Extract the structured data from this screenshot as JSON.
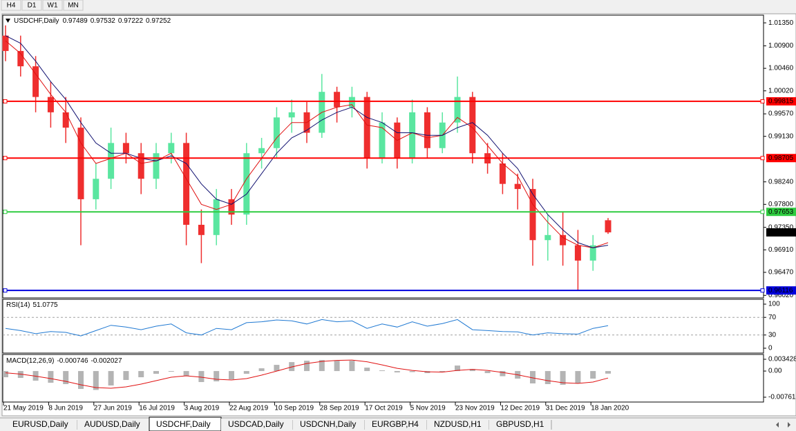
{
  "toolbar": [
    "H4",
    "D1",
    "W1",
    "MN"
  ],
  "tabs": [
    "EURUSD,Daily",
    "AUDUSD,Daily",
    "USDCHF,Daily",
    "USDCAD,Daily",
    "USDCNH,Daily",
    "EURGBP,H4",
    "NZDUSD,H1",
    "GBPUSD,H1"
  ],
  "active_tab": 2,
  "chart_data": [
    {
      "type": "candlestick",
      "symbol": "USDCHF,Daily",
      "categories": [
        "21 May 2019",
        null,
        null,
        "8 Jun 2019",
        null,
        null,
        "27 Jun 2019",
        null,
        null,
        "16 Jul 2019",
        null,
        null,
        "3 Aug 2019",
        null,
        null,
        "22 Aug 2019",
        null,
        null,
        "10 Sep 2019",
        null,
        null,
        "28 Sep 2019",
        null,
        null,
        "17 Oct 2019",
        null,
        null,
        "5 Nov 2019",
        null,
        null,
        "23 Nov 2019",
        null,
        null,
        "12 Dec 2019",
        null,
        null,
        "31 Dec 2019",
        null,
        null,
        "18 Jan 2020",
        null
      ],
      "open": [
        1.011,
        1.008,
        1.005,
        0.999,
        0.996,
        0.993,
        0.979,
        0.983,
        0.99,
        0.988,
        0.983,
        0.988,
        0.99,
        0.974,
        0.972,
        0.979,
        0.976,
        0.988,
        0.989,
        0.995,
        0.996,
        0.992,
        1.0,
        0.997,
        0.999,
        0.987,
        0.994,
        0.987,
        0.996,
        0.989,
        0.994,
        0.999,
        0.988,
        0.986,
        0.982,
        0.981,
        0.971,
        0.972,
        0.97,
        0.967,
        0.97489
      ],
      "high": [
        1.013,
        1.011,
        1.007,
        1.002,
        0.999,
        0.995,
        0.986,
        0.993,
        0.992,
        0.99,
        0.99,
        0.992,
        0.992,
        0.977,
        0.981,
        0.981,
        0.99,
        0.991,
        0.997,
        0.9985,
        0.998,
        1.0035,
        1.001,
        1.001,
        1.0,
        0.996,
        0.995,
        0.9985,
        0.997,
        0.996,
        1.003,
        1.0,
        0.99,
        0.988,
        0.984,
        0.983,
        0.976,
        0.9765,
        0.973,
        0.972,
        0.97532
      ],
      "low": [
        1.006,
        1.003,
        0.996,
        0.993,
        0.99,
        0.97,
        0.977,
        0.981,
        0.986,
        0.98,
        0.981,
        0.986,
        0.97,
        0.9665,
        0.97,
        0.974,
        0.974,
        0.985,
        0.987,
        0.992,
        0.99,
        0.991,
        0.994,
        0.995,
        0.985,
        0.986,
        0.985,
        0.986,
        0.987,
        0.988,
        0.992,
        0.986,
        0.984,
        0.98,
        0.977,
        0.966,
        0.967,
        0.966,
        0.9612,
        0.965,
        0.97222
      ],
      "close": [
        1.008,
        1.005,
        0.999,
        0.996,
        0.993,
        0.979,
        0.983,
        0.99,
        0.988,
        0.983,
        0.988,
        0.99,
        0.974,
        0.972,
        0.979,
        0.976,
        0.988,
        0.989,
        0.995,
        0.996,
        0.992,
        1.0,
        0.997,
        0.999,
        0.987,
        0.994,
        0.987,
        0.996,
        0.989,
        0.994,
        0.999,
        0.988,
        0.986,
        0.982,
        0.981,
        0.971,
        0.972,
        0.97,
        0.967,
        0.97,
        0.97252
      ],
      "up_color": "#5ae6a0",
      "down_color": "#ef2e2e",
      "series": [
        {
          "color": "#e01010",
          "values": [
            1.01,
            1.0075,
            1.0035,
            0.9995,
            0.996,
            0.99,
            0.986,
            0.987,
            0.988,
            0.986,
            0.9865,
            0.988,
            0.983,
            0.978,
            0.977,
            0.978,
            0.983,
            0.987,
            0.991,
            0.994,
            0.994,
            0.996,
            0.997,
            0.9975,
            0.9935,
            0.993,
            0.9905,
            0.992,
            0.991,
            0.9915,
            0.995,
            0.993,
            0.9895,
            0.986,
            0.9835,
            0.978,
            0.9745,
            0.9715,
            0.97,
            0.9695,
            0.9705
          ]
        },
        {
          "color": "#101070",
          "values": [
            1.011,
            1.0095,
            1.006,
            1.002,
            0.9985,
            0.994,
            0.99,
            0.988,
            0.988,
            0.987,
            0.9865,
            0.9875,
            0.986,
            0.982,
            0.979,
            0.978,
            0.98,
            0.984,
            0.988,
            0.991,
            0.9925,
            0.9945,
            0.996,
            0.997,
            0.995,
            0.994,
            0.992,
            0.992,
            0.9915,
            0.9915,
            0.993,
            0.994,
            0.9915,
            0.988,
            0.985,
            0.98,
            0.976,
            0.973,
            0.9705,
            0.9695,
            0.97
          ]
        }
      ],
      "levels": [
        {
          "value": 0.99815,
          "color": "#ff0000"
        },
        {
          "value": 0.98705,
          "color": "#ff0000"
        },
        {
          "value": 0.97653,
          "color": "#2ecc40"
        },
        {
          "value": 0.96116,
          "color": "#0000dd"
        }
      ],
      "ylim": [
        0.9597,
        1.015
      ],
      "yticks": [
        {
          "value": 1.0135,
          "label": "1.01350"
        },
        {
          "value": 1.009,
          "label": "1.00900"
        },
        {
          "value": 1.0046,
          "label": "1.00460"
        },
        {
          "value": 1.0002,
          "label": "1.00020"
        },
        {
          "value": 0.9957,
          "label": "0.99570"
        },
        {
          "value": 0.9913,
          "label": "0.99130"
        },
        {
          "value": 0.9824,
          "label": "0.98240"
        },
        {
          "value": 0.978,
          "label": "0.97800"
        },
        {
          "value": 0.9735,
          "label": "0.97350"
        },
        {
          "value": 0.9691,
          "label": "0.96910"
        },
        {
          "value": 0.9647,
          "label": "0.96470"
        },
        {
          "value": 0.9602,
          "label": "0.96020"
        }
      ]
    },
    {
      "type": "line",
      "title": "RSI(14)",
      "series": [
        {
          "color": "#1e78d2",
          "values": [
            45,
            40,
            33,
            38,
            36,
            28,
            40,
            52,
            48,
            42,
            50,
            55,
            35,
            30,
            45,
            42,
            58,
            60,
            64,
            62,
            55,
            65,
            60,
            62,
            45,
            55,
            48,
            60,
            50,
            56,
            65,
            42,
            40,
            38,
            37,
            30,
            35,
            33,
            32,
            45,
            51.0775
          ]
        }
      ],
      "levels": [
        70,
        30
      ],
      "ylim": [
        -11,
        111
      ],
      "yticks": [
        100,
        70,
        30,
        0
      ]
    },
    {
      "type": "macd",
      "title": "MACD(12,26,9)",
      "histogram": {
        "color": "#b4b4b4",
        "values": [
          -0.0018,
          -0.002,
          -0.0028,
          -0.0034,
          -0.0038,
          -0.0052,
          -0.0055,
          -0.0042,
          -0.0026,
          -0.0018,
          -0.0008,
          -0.0002,
          -0.0015,
          -0.0032,
          -0.003,
          -0.0024,
          -0.0008,
          0.0008,
          0.0018,
          0.0026,
          0.003,
          0.0032,
          0.003,
          0.003,
          0.001,
          0.0002,
          -0.0004,
          -0.0003,
          -0.0006,
          -0.0003,
          0.0016,
          0.0006,
          -0.0006,
          -0.0015,
          -0.0022,
          -0.0036,
          -0.0038,
          -0.004,
          -0.0036,
          -0.0022,
          -0.000746
        ]
      },
      "signal": {
        "color": "#e01010",
        "values": [
          -0.0005,
          -0.0009,
          -0.0015,
          -0.0022,
          -0.003,
          -0.004,
          -0.0048,
          -0.005,
          -0.0046,
          -0.0038,
          -0.0028,
          -0.0018,
          -0.0014,
          -0.0018,
          -0.0024,
          -0.0026,
          -0.0022,
          -0.0012,
          0.0,
          0.0012,
          0.0022,
          0.0028,
          0.0031,
          0.0032,
          0.0027,
          0.0018,
          0.0008,
          0.0002,
          -0.0002,
          -0.0003,
          0.0002,
          0.0005,
          0.0002,
          -0.0004,
          -0.0011,
          -0.002,
          -0.0028,
          -0.0034,
          -0.0036,
          -0.0032,
          -0.002027
        ]
      },
      "ylim": [
        -0.00902,
        0.00483
      ],
      "yticks": [
        0.003428,
        {
          "value": 0,
          "label": "0.00"
        },
        -0.007615
      ]
    }
  ]
}
